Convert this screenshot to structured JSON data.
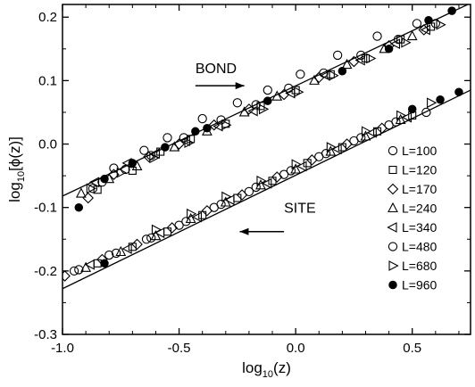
{
  "chart_data": {
    "type": "scatter",
    "xlabel": {
      "prefix": "log",
      "sub": "10",
      "suffix": "(z)"
    },
    "ylabel": {
      "prefix": "log",
      "sub": "10",
      "suffix": "[ϕ(z)]"
    },
    "xlim": [
      -1.0,
      0.75
    ],
    "ylim": [
      -0.3,
      0.22
    ],
    "x_ticks": [
      -1.0,
      -0.5,
      0.0,
      0.5
    ],
    "x_tick_labels": [
      "-1.0",
      "-0.5",
      "0.0",
      "0.5"
    ],
    "y_ticks": [
      -0.3,
      -0.2,
      -0.1,
      0.0,
      0.1,
      0.2
    ],
    "y_tick_labels": [
      "-0.3",
      "-0.2",
      "-0.1",
      "0.0",
      "0.1",
      "0.2"
    ],
    "grid": false,
    "legend": {
      "position": "right",
      "entries": [
        {
          "label": "L=100",
          "marker": "circle"
        },
        {
          "label": "L=120",
          "marker": "square"
        },
        {
          "label": "L=170",
          "marker": "diamond"
        },
        {
          "label": "L=240",
          "marker": "triangle-up"
        },
        {
          "label": "L=340",
          "marker": "triangle-left"
        },
        {
          "label": "L=480",
          "marker": "circle"
        },
        {
          "label": "L=680",
          "marker": "triangle-right"
        },
        {
          "label": "L=960",
          "marker": "circle-filled"
        }
      ]
    },
    "annotations": [
      {
        "text": "BOND",
        "x": -0.43,
        "y": 0.112,
        "arrow": "right",
        "arrow_from": [
          -0.43,
          0.092
        ],
        "arrow_to": [
          -0.22,
          0.092
        ]
      },
      {
        "text": "SITE",
        "x": -0.05,
        "y": -0.108,
        "arrow": "left",
        "arrow_from": [
          -0.05,
          -0.138
        ],
        "arrow_to": [
          -0.24,
          -0.138
        ]
      }
    ],
    "fit_lines": [
      {
        "name": "BOND",
        "x": [
          -1.0,
          0.75
        ],
        "y": [
          -0.082,
          0.222
        ]
      },
      {
        "name": "SITE",
        "x": [
          -1.0,
          0.75
        ],
        "y": [
          -0.228,
          0.085
        ]
      }
    ],
    "series": [
      {
        "marker": "circle",
        "group": "BOND",
        "points": [
          [
            -0.87,
            -0.07
          ],
          [
            -0.78,
            -0.038
          ],
          [
            -0.65,
            -0.01
          ],
          [
            -0.55,
            0.01
          ],
          [
            -0.4,
            0.04
          ],
          [
            -0.25,
            0.065
          ],
          [
            -0.12,
            0.085
          ],
          [
            0.02,
            0.11
          ],
          [
            0.18,
            0.14
          ],
          [
            0.35,
            0.17
          ],
          [
            0.52,
            0.19
          ]
        ]
      },
      {
        "marker": "square",
        "group": "BOND",
        "points": [
          [
            -0.85,
            -0.072
          ],
          [
            -0.7,
            -0.042
          ],
          [
            -0.58,
            -0.012
          ],
          [
            -0.45,
            0.008
          ],
          [
            -0.3,
            0.032
          ],
          [
            -0.15,
            0.06
          ],
          [
            0.0,
            0.085
          ],
          [
            0.15,
            0.11
          ],
          [
            0.3,
            0.135
          ],
          [
            0.45,
            0.165
          ],
          [
            0.58,
            0.185
          ]
        ]
      },
      {
        "marker": "diamond",
        "group": "BOND",
        "points": [
          [
            -0.89,
            -0.085
          ],
          [
            -0.78,
            -0.048
          ],
          [
            -0.63,
            -0.02
          ],
          [
            -0.5,
            0.0
          ],
          [
            -0.35,
            0.03
          ],
          [
            -0.2,
            0.055
          ],
          [
            -0.05,
            0.078
          ],
          [
            0.1,
            0.105
          ],
          [
            0.25,
            0.13
          ],
          [
            0.4,
            0.155
          ],
          [
            0.55,
            0.18
          ]
        ]
      },
      {
        "marker": "triangle-up",
        "group": "BOND",
        "points": [
          [
            -0.92,
            -0.078
          ],
          [
            -0.8,
            -0.055
          ],
          [
            -0.68,
            -0.035
          ],
          [
            -0.52,
            -0.005
          ],
          [
            -0.38,
            0.02
          ],
          [
            -0.22,
            0.05
          ],
          [
            -0.08,
            0.075
          ],
          [
            0.08,
            0.1
          ],
          [
            0.22,
            0.125
          ],
          [
            0.38,
            0.15
          ],
          [
            0.5,
            0.17
          ]
        ]
      },
      {
        "marker": "triangle-left",
        "group": "BOND",
        "points": [
          [
            -0.86,
            -0.06
          ],
          [
            -0.72,
            -0.03
          ],
          [
            -0.6,
            -0.015
          ],
          [
            -0.47,
            0.005
          ],
          [
            -0.33,
            0.028
          ],
          [
            -0.18,
            0.052
          ],
          [
            -0.02,
            0.08
          ],
          [
            0.13,
            0.108
          ],
          [
            0.28,
            0.132
          ],
          [
            0.43,
            0.158
          ],
          [
            0.56,
            0.18
          ]
        ]
      },
      {
        "marker": "circle",
        "group": "BOND",
        "points": [
          [
            -0.83,
            -0.06
          ],
          [
            -0.73,
            -0.04
          ],
          [
            -0.62,
            -0.018
          ],
          [
            -0.48,
            0.01
          ],
          [
            -0.32,
            0.038
          ],
          [
            -0.17,
            0.062
          ],
          [
            -0.03,
            0.088
          ],
          [
            0.12,
            0.112
          ],
          [
            0.28,
            0.14
          ],
          [
            0.44,
            0.165
          ],
          [
            0.6,
            0.19
          ]
        ]
      },
      {
        "marker": "triangle-right",
        "group": "BOND",
        "points": [
          [
            -0.88,
            -0.07
          ],
          [
            -0.75,
            -0.045
          ],
          [
            -0.61,
            -0.022
          ],
          [
            -0.46,
            0.002
          ],
          [
            -0.3,
            0.03
          ],
          [
            -0.14,
            0.055
          ],
          [
            0.01,
            0.082
          ],
          [
            0.16,
            0.108
          ],
          [
            0.32,
            0.135
          ],
          [
            0.47,
            0.16
          ],
          [
            0.62,
            0.188
          ]
        ]
      },
      {
        "marker": "circle-filled",
        "group": "BOND",
        "points": [
          [
            -0.93,
            -0.1
          ],
          [
            -0.82,
            -0.055
          ],
          [
            -0.7,
            -0.03
          ],
          [
            -0.56,
            -0.005
          ],
          [
            -0.43,
            0.02
          ],
          [
            -0.38,
            0.025
          ],
          [
            -0.12,
            0.068
          ],
          [
            0.2,
            0.115
          ],
          [
            0.4,
            0.15
          ],
          [
            0.57,
            0.195
          ],
          [
            0.67,
            0.21
          ]
        ]
      },
      {
        "marker": "circle",
        "group": "SITE",
        "points": [
          [
            -0.95,
            -0.2
          ],
          [
            -0.8,
            -0.175
          ],
          [
            -0.64,
            -0.15
          ],
          [
            -0.5,
            -0.128
          ],
          [
            -0.35,
            -0.1
          ],
          [
            -0.2,
            -0.075
          ],
          [
            -0.05,
            -0.048
          ],
          [
            0.1,
            -0.02
          ],
          [
            0.25,
            0.005
          ],
          [
            0.4,
            0.03
          ]
        ]
      },
      {
        "marker": "square",
        "group": "SITE",
        "points": [
          [
            -0.85,
            -0.188
          ],
          [
            -0.7,
            -0.162
          ],
          [
            -0.55,
            -0.138
          ],
          [
            -0.4,
            -0.112
          ],
          [
            -0.25,
            -0.085
          ],
          [
            -0.1,
            -0.058
          ],
          [
            0.05,
            -0.03
          ],
          [
            0.2,
            -0.005
          ],
          [
            0.35,
            0.02
          ],
          [
            0.5,
            0.045
          ]
        ]
      },
      {
        "marker": "diamond",
        "group": "SITE",
        "points": [
          [
            -0.99,
            -0.208
          ],
          [
            -0.83,
            -0.182
          ],
          [
            -0.68,
            -0.158
          ],
          [
            -0.53,
            -0.132
          ],
          [
            -0.38,
            -0.105
          ],
          [
            -0.23,
            -0.08
          ],
          [
            -0.08,
            -0.052
          ],
          [
            0.07,
            -0.025
          ],
          [
            0.22,
            0.0
          ],
          [
            0.37,
            0.025
          ]
        ]
      },
      {
        "marker": "triangle-up",
        "group": "SITE",
        "points": [
          [
            -0.9,
            -0.195
          ],
          [
            -0.75,
            -0.17
          ],
          [
            -0.6,
            -0.145
          ],
          [
            -0.45,
            -0.118
          ],
          [
            -0.3,
            -0.092
          ],
          [
            -0.15,
            -0.065
          ],
          [
            0.0,
            -0.04
          ],
          [
            0.15,
            -0.012
          ],
          [
            0.3,
            0.012
          ],
          [
            0.45,
            0.038
          ]
        ]
      },
      {
        "marker": "triangle-left",
        "group": "SITE",
        "points": [
          [
            -0.88,
            -0.19
          ],
          [
            -0.72,
            -0.165
          ],
          [
            -0.58,
            -0.14
          ],
          [
            -0.42,
            -0.115
          ],
          [
            -0.28,
            -0.088
          ],
          [
            -0.12,
            -0.062
          ],
          [
            0.03,
            -0.035
          ],
          [
            0.18,
            -0.008
          ],
          [
            0.33,
            0.018
          ],
          [
            0.48,
            0.042
          ]
        ]
      },
      {
        "marker": "circle",
        "group": "SITE",
        "points": [
          [
            -0.93,
            -0.198
          ],
          [
            -0.77,
            -0.172
          ],
          [
            -0.62,
            -0.148
          ],
          [
            -0.47,
            -0.122
          ],
          [
            -0.32,
            -0.095
          ],
          [
            -0.17,
            -0.068
          ],
          [
            -0.02,
            -0.042
          ],
          [
            0.13,
            -0.015
          ],
          [
            0.28,
            0.01
          ],
          [
            0.43,
            0.035
          ],
          [
            0.56,
            0.05
          ]
        ]
      },
      {
        "marker": "triangle-right",
        "group": "SITE",
        "points": [
          [
            -0.6,
            -0.135
          ],
          [
            -0.45,
            -0.11
          ],
          [
            -0.3,
            -0.083
          ],
          [
            -0.15,
            -0.058
          ],
          [
            0.0,
            -0.032
          ],
          [
            0.15,
            -0.005
          ],
          [
            0.3,
            0.02
          ],
          [
            0.45,
            0.045
          ],
          [
            0.58,
            0.065
          ]
        ]
      },
      {
        "marker": "circle-filled",
        "group": "SITE",
        "points": [
          [
            -0.82,
            -0.188
          ],
          [
            0.5,
            0.055
          ],
          [
            0.62,
            0.07
          ],
          [
            0.7,
            0.082
          ]
        ]
      }
    ]
  }
}
